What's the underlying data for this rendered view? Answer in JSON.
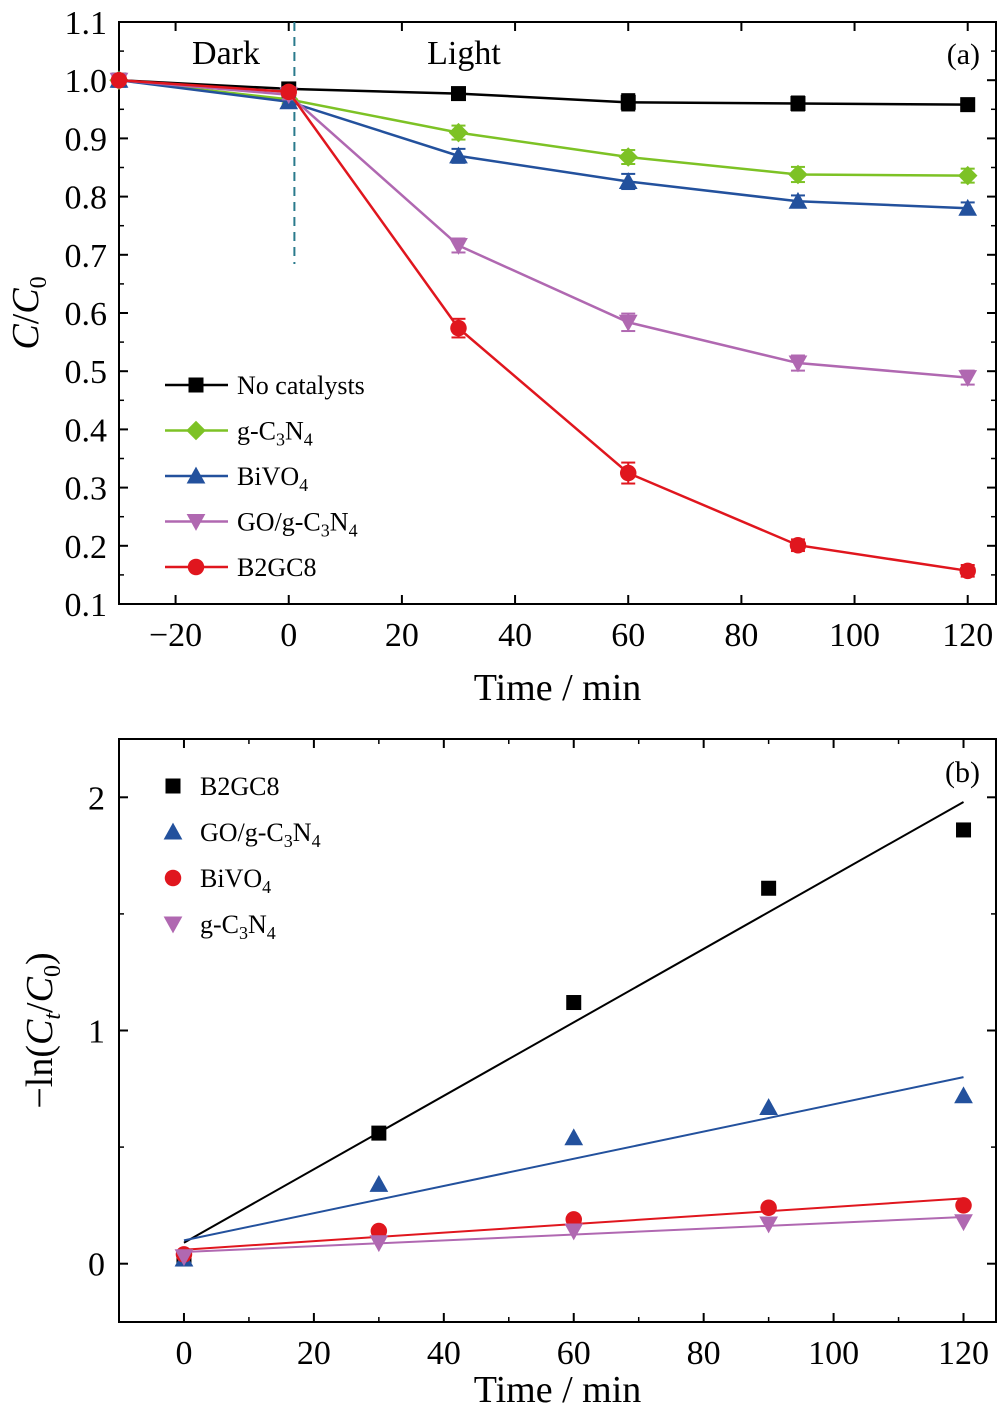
{
  "colors": {
    "black": "#000000",
    "green": "#7dc225",
    "blue": "#23519d",
    "purple": "#b068b1",
    "red": "#e0161e",
    "dash": "#2a7a8c"
  },
  "chart_data": [
    {
      "type": "line",
      "panel_label": "(a)",
      "xlabel": "Time / min",
      "ylabel_main": "C",
      "ylabel_slash": "/",
      "ylabel_sub_base": "C",
      "ylabel_sub": "0",
      "xlim": [
        -30,
        125
      ],
      "ylim": [
        0.1,
        1.1
      ],
      "xticks": [
        -20,
        0,
        20,
        40,
        60,
        80,
        100,
        120
      ],
      "xtick_labels": [
        "−20",
        "0",
        "20",
        "40",
        "60",
        "80",
        "100",
        "120"
      ],
      "yticks": [
        0.1,
        0.2,
        0.3,
        0.4,
        0.5,
        0.6,
        0.7,
        0.8,
        0.9,
        1.0,
        1.1
      ],
      "ytick_labels": [
        "0.1",
        "0.2",
        "0.3",
        "0.4",
        "0.5",
        "0.6",
        "0.7",
        "0.8",
        "0.9",
        "1.0",
        "1.1"
      ],
      "annotations": {
        "dark": "Dark",
        "light": "Light"
      },
      "divider_x": 1,
      "legend_position": "lower-left",
      "series": [
        {
          "name": "No catalysts",
          "name_parts": [
            "No catalysts"
          ],
          "marker": "square",
          "color": "#000000",
          "x": [
            -30,
            0,
            30,
            60,
            90,
            120
          ],
          "y": [
            1.0,
            0.985,
            0.977,
            0.962,
            0.96,
            0.958
          ],
          "err": [
            0,
            0.008,
            0.01,
            0.014,
            0.012,
            0.01
          ]
        },
        {
          "name": "g-C3N4",
          "name_parts": [
            "g-C",
            "3",
            "N",
            "4"
          ],
          "marker": "diamond",
          "color": "#7dc225",
          "x": [
            -30,
            0,
            30,
            60,
            90,
            120
          ],
          "y": [
            1.0,
            0.967,
            0.91,
            0.868,
            0.838,
            0.836
          ],
          "err": [
            0,
            0.008,
            0.012,
            0.012,
            0.013,
            0.012
          ]
        },
        {
          "name": "BiVO4",
          "name_parts": [
            "BiVO",
            "4"
          ],
          "marker": "triangle-up",
          "color": "#23519d",
          "x": [
            -30,
            0,
            30,
            60,
            90,
            120
          ],
          "y": [
            1.0,
            0.963,
            0.87,
            0.826,
            0.792,
            0.78
          ],
          "err": [
            0,
            0.008,
            0.012,
            0.013,
            0.01,
            0.01
          ]
        },
        {
          "name": "GO/g-C3N4",
          "name_parts": [
            "GO/g-C",
            "3",
            "N",
            "4"
          ],
          "marker": "triangle-down",
          "color": "#b068b1",
          "x": [
            -30,
            0,
            30,
            60,
            90,
            120
          ],
          "y": [
            1.0,
            0.975,
            0.716,
            0.584,
            0.514,
            0.489
          ],
          "err": [
            0,
            0.008,
            0.012,
            0.015,
            0.013,
            0.012
          ]
        },
        {
          "name": "B2GC8",
          "name_parts": [
            "B2GC8"
          ],
          "marker": "circle",
          "color": "#e0161e",
          "x": [
            -30,
            0,
            30,
            60,
            90,
            120
          ],
          "y": [
            1.0,
            0.98,
            0.574,
            0.325,
            0.201,
            0.157
          ],
          "err": [
            0,
            0.008,
            0.016,
            0.018,
            0.01,
            0.01
          ]
        }
      ]
    },
    {
      "type": "scatter",
      "panel_label": "(b)",
      "xlabel": "Time / min",
      "ylabel_prefix": "−ln(",
      "ylabel_c": "C",
      "ylabel_t": "t",
      "ylabel_slash": "/",
      "ylabel_c0": "C",
      "ylabel_0": "0",
      "ylabel_suffix": ")",
      "xlim": [
        -10,
        125
      ],
      "ylim": [
        -0.25,
        2.25
      ],
      "xticks": [
        0,
        20,
        40,
        60,
        80,
        100,
        120
      ],
      "xtick_labels": [
        "0",
        "20",
        "40",
        "60",
        "80",
        "100",
        "120"
      ],
      "yticks": [
        0,
        1,
        2
      ],
      "ytick_labels": [
        "0",
        "1",
        "2"
      ],
      "legend_position": "top-left",
      "series": [
        {
          "name": "B2GC8",
          "name_parts": [
            "B2GC8"
          ],
          "marker": "square",
          "color": "#000000",
          "x": [
            0,
            30,
            60,
            90,
            120
          ],
          "y": [
            0.02,
            0.56,
            1.12,
            1.61,
            1.86
          ],
          "fit": [
            0.09,
            1.98
          ]
        },
        {
          "name": "GO/g-C3N4",
          "name_parts": [
            "GO/g-C",
            "3",
            "N",
            "4"
          ],
          "marker": "triangle-up",
          "color": "#23519d",
          "x": [
            0,
            30,
            60,
            90,
            120
          ],
          "y": [
            0.02,
            0.34,
            0.54,
            0.67,
            0.72
          ],
          "fit": [
            0.1,
            0.8
          ]
        },
        {
          "name": "BiVO4",
          "name_parts": [
            "BiVO",
            "4"
          ],
          "marker": "circle",
          "color": "#e0161e",
          "x": [
            0,
            30,
            60,
            90,
            120
          ],
          "y": [
            0.04,
            0.14,
            0.19,
            0.24,
            0.25
          ],
          "fit": [
            0.06,
            0.28
          ]
        },
        {
          "name": "g-C3N4",
          "name_parts": [
            "g-C",
            "3",
            "N",
            "4"
          ],
          "marker": "triangle-down",
          "color": "#b068b1",
          "x": [
            0,
            30,
            60,
            90,
            120
          ],
          "y": [
            0.03,
            0.09,
            0.14,
            0.17,
            0.18
          ],
          "fit": [
            0.05,
            0.2
          ]
        }
      ]
    }
  ]
}
